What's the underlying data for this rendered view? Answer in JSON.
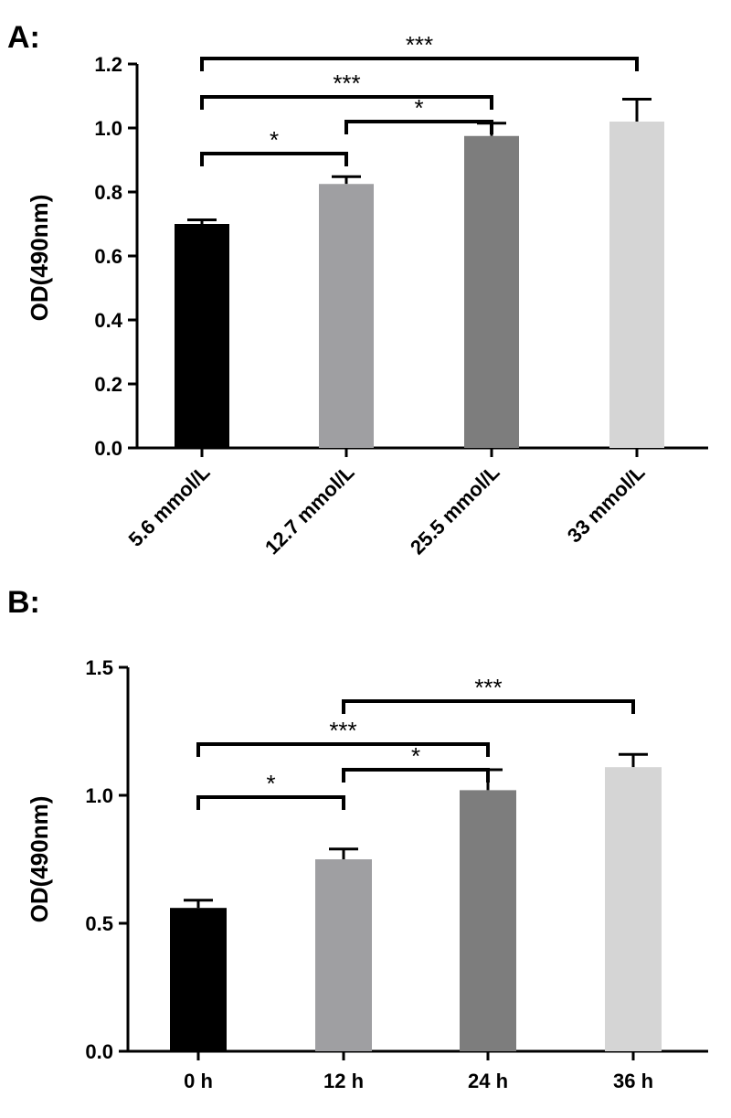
{
  "chart_data": [
    {
      "type": "bar",
      "panel_label": "A:",
      "ylabel": "OD(490nm)",
      "ylim": [
        0,
        1.2
      ],
      "yticks": [
        "0.0",
        "0.2",
        "0.4",
        "0.6",
        "0.8",
        "1.0",
        "1.2"
      ],
      "categories": [
        "5.6 mmol/L",
        "12.7 mmol/L",
        "25.5 mmol/L",
        "33 mmol/L"
      ],
      "values": [
        0.7,
        0.825,
        0.975,
        1.02
      ],
      "errors": [
        0.013,
        0.023,
        0.04,
        0.07
      ],
      "colors": [
        "#000000",
        "#9f9fa2",
        "#7d7d7d",
        "#d5d5d5"
      ],
      "significance": [
        {
          "from": 0,
          "to": 1,
          "label": "*"
        },
        {
          "from": 1,
          "to": 2,
          "label": "*"
        },
        {
          "from": 0,
          "to": 2,
          "label": "***"
        },
        {
          "from": 0,
          "to": 3,
          "label": "***"
        }
      ]
    },
    {
      "type": "bar",
      "panel_label": "B:",
      "ylabel": "OD(490nm)",
      "ylim": [
        0,
        1.5
      ],
      "yticks": [
        "0.0",
        "0.5",
        "1.0",
        "1.5"
      ],
      "categories": [
        "0 h",
        "12 h",
        "24 h",
        "36 h"
      ],
      "values": [
        0.56,
        0.75,
        1.02,
        1.11
      ],
      "errors": [
        0.03,
        0.04,
        0.08,
        0.05
      ],
      "colors": [
        "#000000",
        "#9f9fa2",
        "#7d7d7d",
        "#d5d5d5"
      ],
      "significance": [
        {
          "from": 0,
          "to": 1,
          "label": "*"
        },
        {
          "from": 1,
          "to": 2,
          "label": "*"
        },
        {
          "from": 0,
          "to": 2,
          "label": "***"
        },
        {
          "from": 1,
          "to": 3,
          "label": "***"
        }
      ]
    }
  ]
}
